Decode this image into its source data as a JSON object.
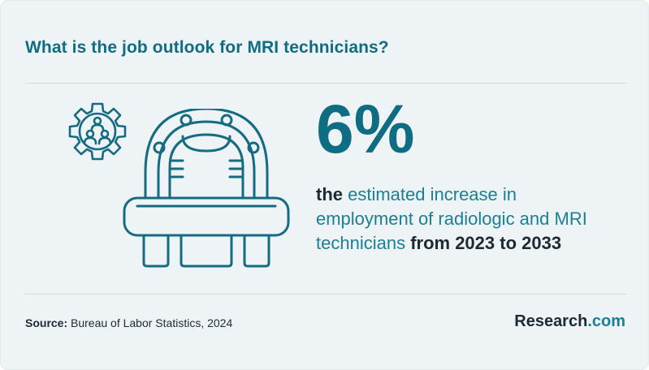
{
  "title": "What is the job outlook for MRI technicians?",
  "stat": {
    "value": "6%",
    "description_prefix": "the ",
    "description_highlight_1": "estimated increase in employment of radiologic and MRI technicians",
    "description_suffix": " from 2023 to 2033"
  },
  "footer": {
    "source_label": "Source:",
    "source_text": " Bureau of Labor Statistics, 2024",
    "brand_name": "Research",
    "brand_domain": ".com"
  },
  "icons": [
    "gear-people-icon",
    "mri-scanner-icon"
  ],
  "colors": {
    "accent": "#0f6d83",
    "highlight": "#1b7f96",
    "text": "#1d2a33",
    "background": "#eef3f5"
  }
}
